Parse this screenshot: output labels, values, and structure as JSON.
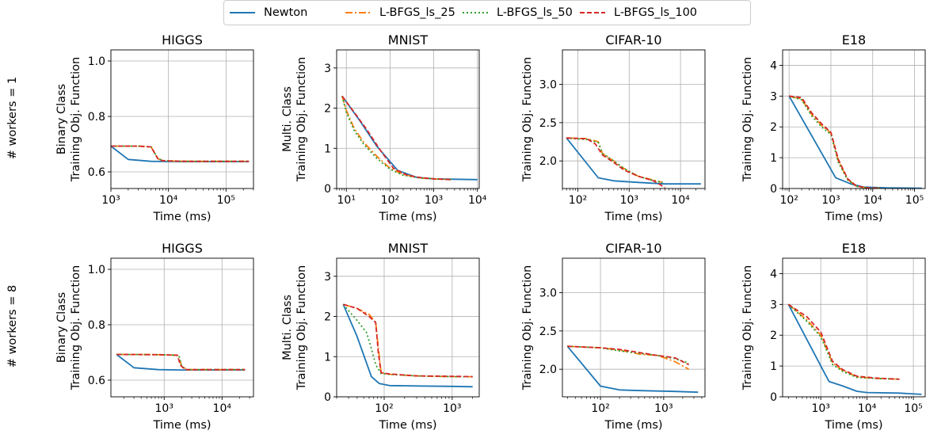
{
  "legend": {
    "position": "top-center",
    "entries": [
      {
        "label": "Newton",
        "color": "#1f77b4",
        "dash": "solid"
      },
      {
        "label": "L-BFGS_ls_25",
        "color": "#ff7f0e",
        "dash": "dashdot"
      },
      {
        "label": "L-BFGS_ls_50",
        "color": "#2ca02c",
        "dash": "dotted"
      },
      {
        "label": "L-BFGS_ls_100",
        "color": "#d62728",
        "dash": "dashed"
      }
    ]
  },
  "row_labels": [
    "# workers = 1",
    "# workers = 8"
  ],
  "chart_data": [
    {
      "type": "line",
      "title": "HIGGS",
      "xlabel": "Time (ms)",
      "ylabel": "Binary Class",
      "ylabel2": "Training Obj. Function",
      "xscale": "log",
      "xlim": [
        1000,
        300000
      ],
      "ylim": [
        0.54,
        1.04
      ],
      "xticks": [
        {
          "v": 1000,
          "label": "10³"
        },
        {
          "v": 10000,
          "label": "10⁴"
        },
        {
          "v": 100000,
          "label": "10⁵"
        }
      ],
      "yticks": [
        {
          "v": 0.6,
          "label": "0.6"
        },
        {
          "v": 0.8,
          "label": "0.8"
        },
        {
          "v": 1.0,
          "label": "1.0"
        }
      ],
      "grid": true,
      "series": [
        {
          "name": "Newton",
          "x": [
            1000,
            2000,
            5000,
            20000,
            250000
          ],
          "y": [
            0.693,
            0.645,
            0.638,
            0.637,
            0.637
          ]
        },
        {
          "name": "L-BFGS_ls_25",
          "x": [
            1000,
            3000,
            5000,
            6500,
            8000,
            20000,
            250000
          ],
          "y": [
            0.693,
            0.693,
            0.69,
            0.648,
            0.64,
            0.638,
            0.638
          ]
        },
        {
          "name": "L-BFGS_ls_50",
          "x": [
            1000,
            3000,
            5000,
            6500,
            8000,
            20000,
            250000
          ],
          "y": [
            0.693,
            0.693,
            0.69,
            0.649,
            0.641,
            0.638,
            0.638
          ]
        },
        {
          "name": "L-BFGS_ls_100",
          "x": [
            1000,
            3000,
            5000,
            6500,
            8000,
            20000,
            250000
          ],
          "y": [
            0.693,
            0.693,
            0.69,
            0.648,
            0.64,
            0.638,
            0.638
          ]
        }
      ]
    },
    {
      "type": "line",
      "title": "MNIST",
      "xlabel": "Time (ms)",
      "ylabel": "Multi. Class",
      "ylabel2": "Training Obj. Function",
      "xscale": "log",
      "xlim": [
        6,
        11000
      ],
      "ylim": [
        0,
        3.45
      ],
      "xticks": [
        {
          "v": 10,
          "label": "10¹"
        },
        {
          "v": 100,
          "label": "10²"
        },
        {
          "v": 1000,
          "label": "10³"
        },
        {
          "v": 10000,
          "label": "10⁴"
        }
      ],
      "yticks": [
        {
          "v": 0,
          "label": "0"
        },
        {
          "v": 1,
          "label": "1"
        },
        {
          "v": 2,
          "label": "2"
        },
        {
          "v": 3,
          "label": "3"
        }
      ],
      "grid": true,
      "series": [
        {
          "name": "Newton",
          "x": [
            8,
            20,
            50,
            150,
            400,
            1000,
            10000
          ],
          "y": [
            2.3,
            1.7,
            1.05,
            0.45,
            0.28,
            0.24,
            0.22
          ]
        },
        {
          "name": "L-BFGS_ls_25",
          "x": [
            8,
            10,
            15,
            25,
            50,
            100,
            200,
            500,
            1000,
            2500
          ],
          "y": [
            2.3,
            1.95,
            1.5,
            1.15,
            0.8,
            0.5,
            0.35,
            0.26,
            0.24,
            0.22
          ]
        },
        {
          "name": "L-BFGS_ls_50",
          "x": [
            8,
            10,
            15,
            25,
            50,
            100,
            200,
            500,
            1000,
            2500
          ],
          "y": [
            2.3,
            1.9,
            1.45,
            1.1,
            0.75,
            0.48,
            0.33,
            0.26,
            0.24,
            0.22
          ]
        },
        {
          "name": "L-BFGS_ls_100",
          "x": [
            8,
            15,
            30,
            60,
            120,
            250,
            500,
            1000,
            2500
          ],
          "y": [
            2.3,
            1.9,
            1.45,
            0.95,
            0.5,
            0.33,
            0.27,
            0.24,
            0.22
          ]
        }
      ]
    },
    {
      "type": "line",
      "title": "CIFAR-10",
      "xlabel": "Time (ms)",
      "ylabel": "",
      "ylabel2": "Training Obj. Function",
      "xscale": "log",
      "xlim": [
        50,
        30000
      ],
      "ylim": [
        1.64,
        3.45
      ],
      "xticks": [
        {
          "v": 100,
          "label": "10²"
        },
        {
          "v": 1000,
          "label": "10³"
        },
        {
          "v": 10000,
          "label": "10⁴"
        }
      ],
      "yticks": [
        {
          "v": 2.0,
          "label": "2.0"
        },
        {
          "v": 2.5,
          "label": "2.5"
        },
        {
          "v": 3.0,
          "label": "3.0"
        }
      ],
      "grid": true,
      "series": [
        {
          "name": "Newton",
          "x": [
            60,
            250,
            500,
            1500,
            5000,
            25000
          ],
          "y": [
            2.3,
            1.78,
            1.74,
            1.72,
            1.7,
            1.7
          ]
        },
        {
          "name": "L-BFGS_ls_25",
          "x": [
            60,
            150,
            250,
            300,
            500,
            800,
            1500,
            3000,
            4500
          ],
          "y": [
            2.3,
            2.29,
            2.25,
            2.1,
            2.0,
            1.9,
            1.8,
            1.75,
            1.72
          ]
        },
        {
          "name": "L-BFGS_ls_50",
          "x": [
            60,
            150,
            250,
            300,
            500,
            800,
            1500,
            3000,
            4500
          ],
          "y": [
            2.3,
            2.28,
            2.24,
            2.1,
            2.0,
            1.9,
            1.8,
            1.74,
            1.72
          ]
        },
        {
          "name": "L-BFGS_ls_100",
          "x": [
            60,
            150,
            220,
            300,
            500,
            800,
            1500,
            3000,
            5000
          ],
          "y": [
            2.3,
            2.29,
            2.22,
            2.08,
            1.98,
            1.88,
            1.8,
            1.74,
            1.65
          ]
        }
      ]
    },
    {
      "type": "line",
      "title": "E18",
      "xlabel": "Time (ms)",
      "ylabel": "",
      "ylabel2": "Training Obj. Function",
      "xscale": "log",
      "xlim": [
        70,
        180000
      ],
      "ylim": [
        0,
        4.5
      ],
      "xticks": [
        {
          "v": 100,
          "label": "10²"
        },
        {
          "v": 1000,
          "label": "10³"
        },
        {
          "v": 10000,
          "label": "10⁴"
        },
        {
          "v": 100000,
          "label": "10⁵"
        }
      ],
      "yticks": [
        {
          "v": 0,
          "label": "0"
        },
        {
          "v": 1,
          "label": "1"
        },
        {
          "v": 2,
          "label": "2"
        },
        {
          "v": 3,
          "label": "3"
        },
        {
          "v": 4,
          "label": "4"
        }
      ],
      "grid": true,
      "series": [
        {
          "name": "Newton",
          "x": [
            100,
            1300,
            3000,
            6000,
            20000,
            150000
          ],
          "y": [
            3.0,
            0.35,
            0.15,
            0.05,
            0.02,
            0.01
          ]
        },
        {
          "name": "L-BFGS_ls_25",
          "x": [
            100,
            200,
            350,
            600,
            1000,
            1500,
            2500,
            4000,
            7000,
            15000
          ],
          "y": [
            3.0,
            2.9,
            2.4,
            2.05,
            1.8,
            0.9,
            0.3,
            0.08,
            0.02,
            0.01
          ]
        },
        {
          "name": "L-BFGS_ls_50",
          "x": [
            100,
            200,
            350,
            600,
            1000,
            1500,
            2500,
            4000,
            7000,
            15000
          ],
          "y": [
            3.0,
            2.88,
            2.35,
            2.0,
            1.75,
            0.85,
            0.28,
            0.07,
            0.02,
            0.01
          ]
        },
        {
          "name": "L-BFGS_ls_100",
          "x": [
            100,
            200,
            350,
            600,
            1000,
            1500,
            2500,
            4000,
            7000,
            15000
          ],
          "y": [
            3.0,
            2.95,
            2.45,
            2.1,
            1.82,
            0.95,
            0.32,
            0.09,
            0.02,
            0.01
          ]
        }
      ]
    },
    {
      "type": "line",
      "title": "HIGGS",
      "xlabel": "Time (ms)",
      "ylabel": "Binary Class",
      "ylabel2": "Training Obj. Function",
      "xscale": "log",
      "xlim": [
        120,
        35000
      ],
      "ylim": [
        0.54,
        1.04
      ],
      "xticks": [
        {
          "v": 1000,
          "label": "10³"
        },
        {
          "v": 10000,
          "label": "10⁴"
        }
      ],
      "yticks": [
        {
          "v": 0.6,
          "label": "0.6"
        },
        {
          "v": 0.8,
          "label": "0.8"
        },
        {
          "v": 1.0,
          "label": "1.0"
        }
      ],
      "grid": true,
      "series": [
        {
          "name": "Newton",
          "x": [
            150,
            300,
            800,
            2000,
            25000
          ],
          "y": [
            0.693,
            0.645,
            0.638,
            0.637,
            0.637
          ]
        },
        {
          "name": "L-BFGS_ls_25",
          "x": [
            150,
            800,
            1800,
            2000,
            2500,
            25000
          ],
          "y": [
            0.693,
            0.692,
            0.69,
            0.65,
            0.638,
            0.638
          ]
        },
        {
          "name": "L-BFGS_ls_50",
          "x": [
            150,
            800,
            1800,
            2000,
            2500,
            25000
          ],
          "y": [
            0.693,
            0.692,
            0.69,
            0.65,
            0.638,
            0.638
          ]
        },
        {
          "name": "L-BFGS_ls_100",
          "x": [
            150,
            800,
            1700,
            1900,
            2300,
            25000
          ],
          "y": [
            0.693,
            0.692,
            0.69,
            0.655,
            0.638,
            0.638
          ]
        }
      ]
    },
    {
      "type": "line",
      "title": "MNIST",
      "xlabel": "Time (ms)",
      "ylabel": "Multi. Class",
      "ylabel2": "Training Obj. Function",
      "xscale": "log",
      "xlim": [
        20,
        2500
      ],
      "ylim": [
        0,
        3.45
      ],
      "xticks": [
        {
          "v": 100,
          "label": "10²"
        },
        {
          "v": 1000,
          "label": "10³"
        }
      ],
      "yticks": [
        {
          "v": 0,
          "label": "0"
        },
        {
          "v": 1,
          "label": "1"
        },
        {
          "v": 2,
          "label": "2"
        },
        {
          "v": 3,
          "label": "3"
        }
      ],
      "grid": true,
      "series": [
        {
          "name": "Newton",
          "x": [
            25,
            40,
            65,
            85,
            120,
            300,
            1000,
            2000
          ],
          "y": [
            2.3,
            1.5,
            0.5,
            0.33,
            0.28,
            0.27,
            0.26,
            0.25
          ]
        },
        {
          "name": "L-BFGS_ls_25",
          "x": [
            25,
            40,
            60,
            75,
            80,
            90,
            120,
            300,
            1000,
            2000
          ],
          "y": [
            2.3,
            2.2,
            2.05,
            1.85,
            1.4,
            0.6,
            0.56,
            0.52,
            0.5,
            0.5
          ]
        },
        {
          "name": "L-BFGS_ls_50",
          "x": [
            25,
            40,
            55,
            65,
            75,
            90,
            120,
            300,
            1000,
            2000
          ],
          "y": [
            2.3,
            1.9,
            1.6,
            1.2,
            0.8,
            0.58,
            0.56,
            0.52,
            0.5,
            0.5
          ]
        },
        {
          "name": "L-BFGS_ls_100",
          "x": [
            25,
            40,
            60,
            75,
            82,
            90,
            120,
            300,
            1000,
            2000
          ],
          "y": [
            2.3,
            2.2,
            2.0,
            1.85,
            1.1,
            0.6,
            0.57,
            0.52,
            0.51,
            0.5
          ]
        }
      ]
    },
    {
      "type": "line",
      "title": "CIFAR-10",
      "xlabel": "Time (ms)",
      "ylabel": "",
      "ylabel2": "Training Obj. Function",
      "xscale": "log",
      "xlim": [
        25,
        4500
      ],
      "ylim": [
        1.64,
        3.45
      ],
      "xticks": [
        {
          "v": 100,
          "label": "10²"
        },
        {
          "v": 1000,
          "label": "10³"
        }
      ],
      "yticks": [
        {
          "v": 2.0,
          "label": "2.0"
        },
        {
          "v": 2.5,
          "label": "2.5"
        },
        {
          "v": 3.0,
          "label": "3.0"
        }
      ],
      "grid": true,
      "series": [
        {
          "name": "Newton",
          "x": [
            30,
            100,
            200,
            500,
            1500,
            3500
          ],
          "y": [
            2.3,
            1.78,
            1.73,
            1.72,
            1.71,
            1.7
          ]
        },
        {
          "name": "L-BFGS_ls_25",
          "x": [
            30,
            100,
            200,
            400,
            800,
            1500,
            2500
          ],
          "y": [
            2.3,
            2.28,
            2.25,
            2.2,
            2.18,
            2.1,
            2.0
          ]
        },
        {
          "name": "L-BFGS_ls_50",
          "x": [
            30,
            100,
            200,
            400,
            800,
            1500,
            2500
          ],
          "y": [
            2.3,
            2.28,
            2.24,
            2.21,
            2.18,
            2.14,
            2.08
          ]
        },
        {
          "name": "L-BFGS_ls_100",
          "x": [
            30,
            100,
            200,
            400,
            800,
            1500,
            2500
          ],
          "y": [
            2.3,
            2.28,
            2.26,
            2.22,
            2.18,
            2.15,
            2.06
          ]
        }
      ]
    },
    {
      "type": "line",
      "title": "E18",
      "xlabel": "Time (ms)",
      "ylabel": "",
      "ylabel2": "Training Obj. Function",
      "xscale": "log",
      "xlim": [
        150,
        180000
      ],
      "ylim": [
        0,
        4.5
      ],
      "xticks": [
        {
          "v": 1000,
          "label": "10³"
        },
        {
          "v": 10000,
          "label": "10⁴"
        },
        {
          "v": 100000,
          "label": "10⁵"
        }
      ],
      "yticks": [
        {
          "v": 0,
          "label": "0"
        },
        {
          "v": 1,
          "label": "1"
        },
        {
          "v": 2,
          "label": "2"
        },
        {
          "v": 3,
          "label": "3"
        },
        {
          "v": 4,
          "label": "4"
        }
      ],
      "grid": true,
      "series": [
        {
          "name": "Newton",
          "x": [
            200,
            1500,
            3000,
            6000,
            10000,
            50000,
            150000
          ],
          "y": [
            3.0,
            0.5,
            0.35,
            0.18,
            0.14,
            0.12,
            0.08
          ]
        },
        {
          "name": "L-BFGS_ls_25",
          "x": [
            200,
            500,
            1000,
            1800,
            3000,
            6000,
            15000,
            50000
          ],
          "y": [
            3.0,
            2.5,
            2.0,
            1.1,
            0.85,
            0.65,
            0.6,
            0.57
          ]
        },
        {
          "name": "L-BFGS_ls_50",
          "x": [
            200,
            500,
            1000,
            1800,
            3000,
            6000,
            15000,
            50000
          ],
          "y": [
            3.0,
            2.45,
            1.95,
            1.05,
            0.82,
            0.63,
            0.6,
            0.57
          ]
        },
        {
          "name": "L-BFGS_ls_100",
          "x": [
            200,
            500,
            1000,
            1800,
            3000,
            6000,
            15000,
            50000
          ],
          "y": [
            3.0,
            2.6,
            2.1,
            1.15,
            0.88,
            0.67,
            0.61,
            0.57
          ]
        }
      ]
    }
  ]
}
